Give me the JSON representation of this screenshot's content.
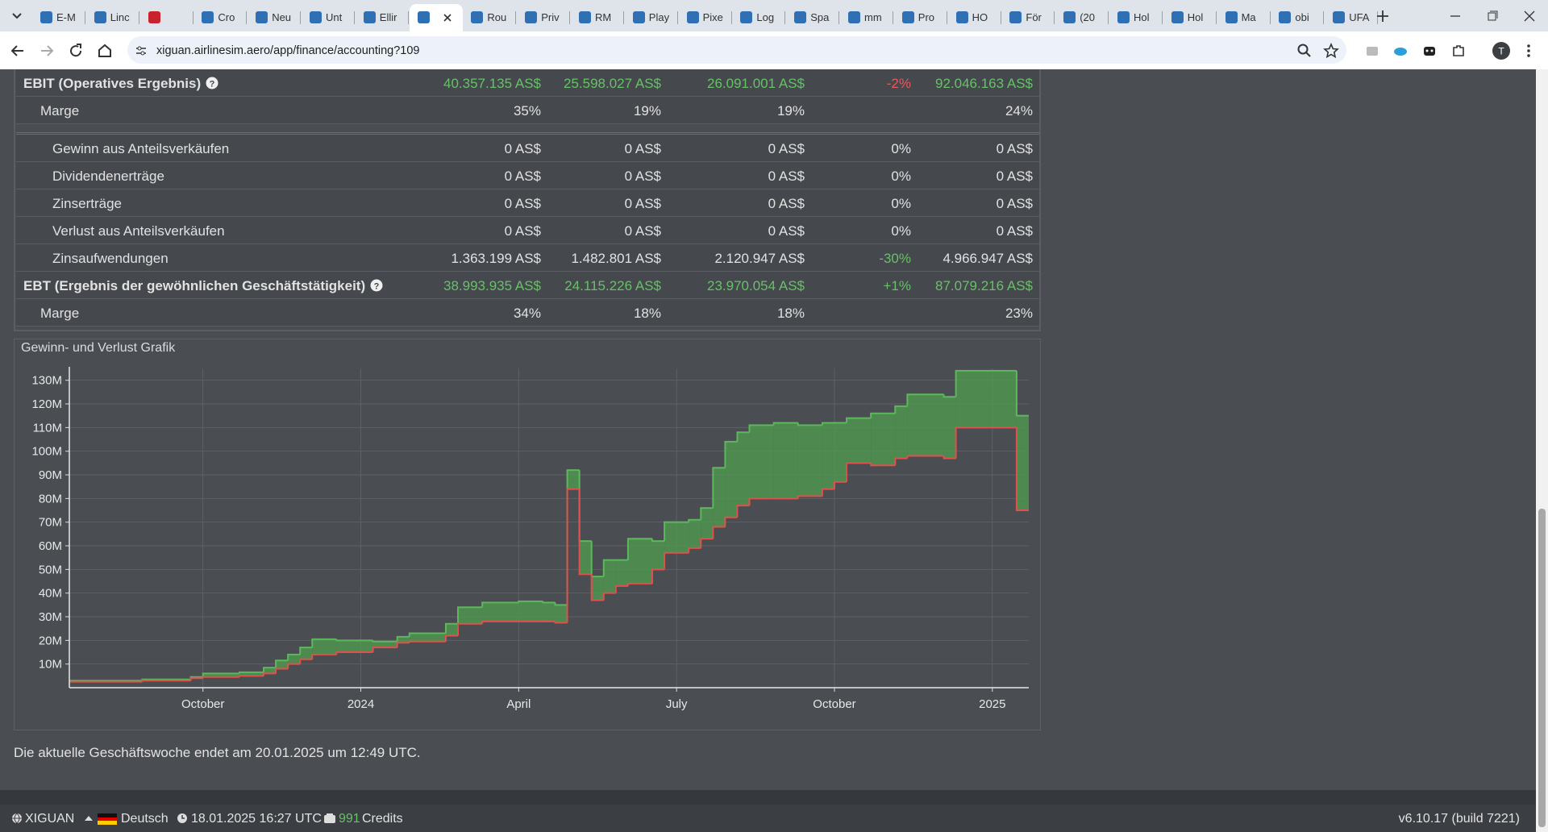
{
  "browser": {
    "tabs": [
      "E-M",
      "Linc",
      null,
      "Cro",
      "Neu",
      "Unt",
      "Ellir",
      null,
      "Rou",
      "Priv",
      "RM",
      "Play",
      "Pixe",
      "Log",
      "Spa",
      "mm",
      "Pro",
      "HO",
      "För",
      "(20",
      "Hol",
      "Hol",
      "Ma",
      "obi",
      "UFA"
    ],
    "active_tab": 7,
    "url": "xiguan.airlinesim.aero/app/finance/accounting?109",
    "profile": "T"
  },
  "table": {
    "rows": [
      {
        "label": "EBIT (Operatives Ergebnis)",
        "kind": "total",
        "help": true,
        "tone": "pos",
        "change_tone": "neg",
        "cells": [
          "40.357.135 AS$",
          "25.598.027 AS$",
          "26.091.001 AS$",
          "-2%",
          "92.046.163 AS$"
        ]
      },
      {
        "label": "Marge",
        "kind": "margin",
        "cells": [
          "35%",
          "19%",
          "19%",
          null,
          "24%"
        ]
      },
      {
        "label": "Gewinn aus Anteilsverkäufen",
        "kind": "item",
        "section_start": true,
        "cells": [
          "0 AS$",
          "0 AS$",
          "0 AS$",
          "0%",
          "0 AS$"
        ]
      },
      {
        "label": "Dividendenerträge",
        "kind": "item",
        "cells": [
          "0 AS$",
          "0 AS$",
          "0 AS$",
          "0%",
          "0 AS$"
        ]
      },
      {
        "label": "Zinserträge",
        "kind": "item",
        "cells": [
          "0 AS$",
          "0 AS$",
          "0 AS$",
          "0%",
          "0 AS$"
        ]
      },
      {
        "label": "Verlust aus Anteilsverkäufen",
        "kind": "item",
        "cells": [
          "0 AS$",
          "0 AS$",
          "0 AS$",
          "0%",
          "0 AS$"
        ]
      },
      {
        "label": "Zinsaufwendungen",
        "kind": "item",
        "change_tone": "pos",
        "cells": [
          "1.363.199 AS$",
          "1.482.801 AS$",
          "2.120.947 AS$",
          "-30%",
          "4.966.947 AS$"
        ]
      },
      {
        "label": "EBT (Ergebnis der gewöhnlichen Geschäftstätigkeit)",
        "kind": "total",
        "help": true,
        "tone": "pos",
        "change_tone": "pos",
        "cells": [
          "38.993.935 AS$",
          "24.115.226 AS$",
          "23.970.054 AS$",
          "+1%",
          "87.079.216 AS$"
        ]
      },
      {
        "label": "Marge",
        "kind": "margin",
        "cells": [
          "34%",
          "18%",
          "18%",
          null,
          "23%"
        ]
      }
    ]
  },
  "chart_data": {
    "type": "step",
    "title": "Gewinn- und Verlust Grafik",
    "fill_between": true,
    "fill_color": "#4f9a4f",
    "grid": true,
    "x": [
      0,
      6,
      10,
      11,
      14,
      16,
      17,
      18,
      19,
      20,
      22,
      25,
      27,
      28,
      31,
      32,
      34,
      37,
      39,
      40,
      41,
      42,
      43,
      44,
      45,
      46,
      48,
      49,
      51,
      52,
      53,
      54,
      55,
      56,
      58,
      60,
      62,
      63,
      64,
      66,
      68,
      69,
      72,
      73,
      78
    ],
    "series": [
      {
        "color": "#5cb85c",
        "values": [
          3,
          3.5,
          4.5,
          6,
          6.5,
          8.5,
          11.5,
          14,
          17,
          20.5,
          20,
          19.5,
          21.5,
          23,
          27,
          34,
          36,
          36.5,
          36,
          35,
          92,
          62,
          47,
          54,
          54,
          63,
          62,
          70,
          71,
          76,
          93,
          104,
          108,
          111,
          112,
          111,
          112,
          112,
          114,
          116,
          119,
          124,
          123,
          134,
          115
        ]
      },
      {
        "color": "#e0504c",
        "values": [
          2.5,
          3,
          4,
          4.5,
          5,
          6,
          8,
          10,
          12,
          14,
          15,
          17,
          19,
          19.5,
          22,
          27,
          28,
          28,
          28,
          27.5,
          84,
          48,
          37,
          40,
          43,
          44,
          50,
          57,
          59,
          63,
          68,
          72,
          77,
          80,
          80,
          81,
          84,
          87,
          95,
          94,
          97,
          98,
          97,
          110,
          75
        ]
      }
    ],
    "xlim": [
      0,
      79
    ],
    "xticks": [
      {
        "value": 11,
        "label": "October"
      },
      {
        "value": 24,
        "label": "2024"
      },
      {
        "value": 37,
        "label": "April"
      },
      {
        "value": 50,
        "label": "July"
      },
      {
        "value": 63,
        "label": "October"
      },
      {
        "value": 76,
        "label": "2025"
      }
    ],
    "ylim": [
      0,
      135
    ],
    "yticks": [
      {
        "value": 10,
        "label": "10M"
      },
      {
        "value": 20,
        "label": "20M"
      },
      {
        "value": 30,
        "label": "30M"
      },
      {
        "value": 40,
        "label": "40M"
      },
      {
        "value": 50,
        "label": "50M"
      },
      {
        "value": 60,
        "label": "60M"
      },
      {
        "value": 70,
        "label": "70M"
      },
      {
        "value": 80,
        "label": "80M"
      },
      {
        "value": 90,
        "label": "90M"
      },
      {
        "value": 100,
        "label": "100M"
      },
      {
        "value": 110,
        "label": "110M"
      },
      {
        "value": 120,
        "label": "120M"
      },
      {
        "value": 130,
        "label": "130M"
      }
    ]
  },
  "note": "Die aktuelle Geschäftswoche endet am 20.01.2025 um 12:49 UTC.",
  "footer": {
    "server": "XIGUAN",
    "language": "Deutsch",
    "datetime": "18.01.2025 16:27 UTC",
    "credits_amount": "991",
    "credits_label": "Credits",
    "version": "v6.10.17 (build 7221)"
  }
}
